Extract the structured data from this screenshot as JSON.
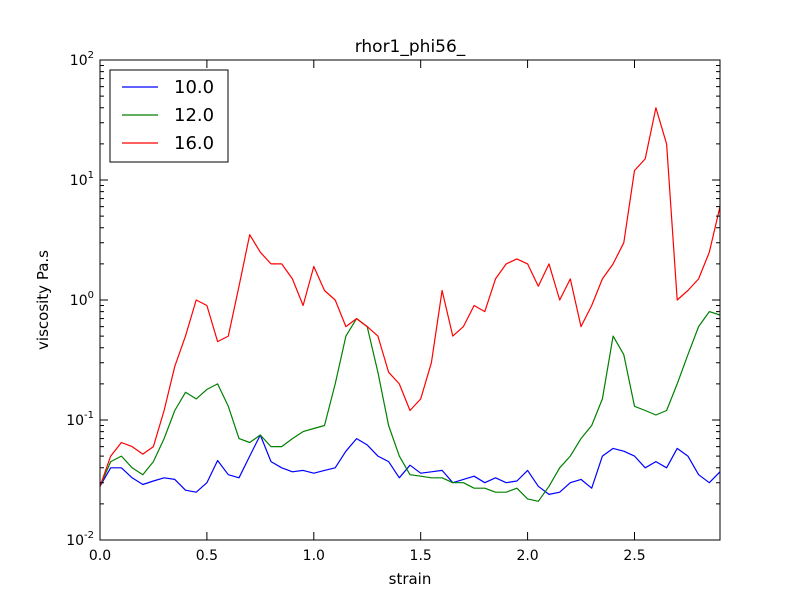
{
  "chart_data": {
    "type": "line",
    "title": "rhor1_phi56_",
    "xlabel": "strain",
    "ylabel": "viscosity Pa.s",
    "xlim": [
      0,
      2.9
    ],
    "ylim": [
      0.01,
      100
    ],
    "yscale": "log",
    "grid": false,
    "legend_position": "top-left",
    "x_ticks": [
      {
        "value": 0.0,
        "label": "0.0"
      },
      {
        "value": 0.5,
        "label": "0.5"
      },
      {
        "value": 1.0,
        "label": "1.0"
      },
      {
        "value": 1.5,
        "label": "1.5"
      },
      {
        "value": 2.0,
        "label": "2.0"
      },
      {
        "value": 2.5,
        "label": "2.5"
      }
    ],
    "y_ticks": [
      {
        "value": 0.01,
        "base": "10",
        "exp": "-2"
      },
      {
        "value": 0.1,
        "base": "10",
        "exp": "-1"
      },
      {
        "value": 1,
        "base": "10",
        "exp": "0"
      },
      {
        "value": 10,
        "base": "10",
        "exp": "1"
      },
      {
        "value": 100,
        "base": "10",
        "exp": "2"
      }
    ],
    "series": [
      {
        "name": "10.0",
        "color": "#0000ff",
        "points": [
          [
            0.0,
            0.028
          ],
          [
            0.05,
            0.04
          ],
          [
            0.1,
            0.04
          ],
          [
            0.15,
            0.033
          ],
          [
            0.2,
            0.029
          ],
          [
            0.25,
            0.031
          ],
          [
            0.3,
            0.033
          ],
          [
            0.35,
            0.032
          ],
          [
            0.4,
            0.026
          ],
          [
            0.45,
            0.025
          ],
          [
            0.5,
            0.03
          ],
          [
            0.55,
            0.046
          ],
          [
            0.6,
            0.035
          ],
          [
            0.65,
            0.033
          ],
          [
            0.7,
            0.05
          ],
          [
            0.75,
            0.075
          ],
          [
            0.8,
            0.045
          ],
          [
            0.85,
            0.04
          ],
          [
            0.9,
            0.037
          ],
          [
            0.95,
            0.038
          ],
          [
            1.0,
            0.036
          ],
          [
            1.05,
            0.038
          ],
          [
            1.1,
            0.04
          ],
          [
            1.15,
            0.055
          ],
          [
            1.2,
            0.07
          ],
          [
            1.25,
            0.062
          ],
          [
            1.3,
            0.05
          ],
          [
            1.35,
            0.045
          ],
          [
            1.4,
            0.033
          ],
          [
            1.45,
            0.042
          ],
          [
            1.5,
            0.036
          ],
          [
            1.55,
            0.037
          ],
          [
            1.6,
            0.038
          ],
          [
            1.65,
            0.03
          ],
          [
            1.7,
            0.032
          ],
          [
            1.75,
            0.034
          ],
          [
            1.8,
            0.03
          ],
          [
            1.85,
            0.033
          ],
          [
            1.9,
            0.03
          ],
          [
            1.95,
            0.031
          ],
          [
            2.0,
            0.038
          ],
          [
            2.05,
            0.028
          ],
          [
            2.1,
            0.024
          ],
          [
            2.15,
            0.025
          ],
          [
            2.2,
            0.03
          ],
          [
            2.25,
            0.032
          ],
          [
            2.3,
            0.027
          ],
          [
            2.35,
            0.05
          ],
          [
            2.4,
            0.058
          ],
          [
            2.45,
            0.055
          ],
          [
            2.5,
            0.05
          ],
          [
            2.55,
            0.04
          ],
          [
            2.6,
            0.045
          ],
          [
            2.65,
            0.04
          ],
          [
            2.7,
            0.058
          ],
          [
            2.75,
            0.05
          ],
          [
            2.8,
            0.035
          ],
          [
            2.85,
            0.03
          ],
          [
            2.9,
            0.037
          ]
        ]
      },
      {
        "name": "12.0",
        "color": "#008000",
        "points": [
          [
            0.0,
            0.028
          ],
          [
            0.05,
            0.045
          ],
          [
            0.1,
            0.05
          ],
          [
            0.15,
            0.04
          ],
          [
            0.2,
            0.035
          ],
          [
            0.25,
            0.045
          ],
          [
            0.3,
            0.07
          ],
          [
            0.35,
            0.12
          ],
          [
            0.4,
            0.17
          ],
          [
            0.45,
            0.15
          ],
          [
            0.5,
            0.18
          ],
          [
            0.55,
            0.2
          ],
          [
            0.6,
            0.13
          ],
          [
            0.65,
            0.07
          ],
          [
            0.7,
            0.065
          ],
          [
            0.75,
            0.075
          ],
          [
            0.8,
            0.06
          ],
          [
            0.85,
            0.06
          ],
          [
            0.9,
            0.07
          ],
          [
            0.95,
            0.08
          ],
          [
            1.0,
            0.085
          ],
          [
            1.05,
            0.09
          ],
          [
            1.1,
            0.2
          ],
          [
            1.15,
            0.5
          ],
          [
            1.2,
            0.7
          ],
          [
            1.25,
            0.6
          ],
          [
            1.3,
            0.25
          ],
          [
            1.35,
            0.09
          ],
          [
            1.4,
            0.05
          ],
          [
            1.45,
            0.035
          ],
          [
            1.5,
            0.034
          ],
          [
            1.55,
            0.033
          ],
          [
            1.6,
            0.033
          ],
          [
            1.65,
            0.03
          ],
          [
            1.7,
            0.03
          ],
          [
            1.75,
            0.027
          ],
          [
            1.8,
            0.027
          ],
          [
            1.85,
            0.025
          ],
          [
            1.9,
            0.025
          ],
          [
            1.95,
            0.027
          ],
          [
            2.0,
            0.022
          ],
          [
            2.05,
            0.021
          ],
          [
            2.1,
            0.028
          ],
          [
            2.15,
            0.04
          ],
          [
            2.2,
            0.05
          ],
          [
            2.25,
            0.07
          ],
          [
            2.3,
            0.09
          ],
          [
            2.35,
            0.15
          ],
          [
            2.4,
            0.5
          ],
          [
            2.45,
            0.35
          ],
          [
            2.5,
            0.13
          ],
          [
            2.55,
            0.12
          ],
          [
            2.6,
            0.11
          ],
          [
            2.65,
            0.12
          ],
          [
            2.7,
            0.2
          ],
          [
            2.75,
            0.35
          ],
          [
            2.8,
            0.6
          ],
          [
            2.85,
            0.8
          ],
          [
            2.9,
            0.75
          ]
        ]
      },
      {
        "name": "16.0",
        "color": "#ff0000",
        "points": [
          [
            0.0,
            0.028
          ],
          [
            0.05,
            0.05
          ],
          [
            0.1,
            0.065
          ],
          [
            0.15,
            0.06
          ],
          [
            0.2,
            0.052
          ],
          [
            0.25,
            0.06
          ],
          [
            0.3,
            0.12
          ],
          [
            0.35,
            0.28
          ],
          [
            0.4,
            0.5
          ],
          [
            0.45,
            1.0
          ],
          [
            0.5,
            0.9
          ],
          [
            0.55,
            0.45
          ],
          [
            0.6,
            0.5
          ],
          [
            0.65,
            1.3
          ],
          [
            0.7,
            3.5
          ],
          [
            0.75,
            2.5
          ],
          [
            0.8,
            2.0
          ],
          [
            0.85,
            2.0
          ],
          [
            0.9,
            1.5
          ],
          [
            0.95,
            0.9
          ],
          [
            1.0,
            1.9
          ],
          [
            1.05,
            1.2
          ],
          [
            1.1,
            1.0
          ],
          [
            1.15,
            0.6
          ],
          [
            1.2,
            0.7
          ],
          [
            1.25,
            0.6
          ],
          [
            1.3,
            0.5
          ],
          [
            1.35,
            0.25
          ],
          [
            1.4,
            0.2
          ],
          [
            1.45,
            0.12
          ],
          [
            1.5,
            0.15
          ],
          [
            1.55,
            0.3
          ],
          [
            1.6,
            1.2
          ],
          [
            1.65,
            0.5
          ],
          [
            1.7,
            0.6
          ],
          [
            1.75,
            0.9
          ],
          [
            1.8,
            0.8
          ],
          [
            1.85,
            1.5
          ],
          [
            1.9,
            2.0
          ],
          [
            1.95,
            2.2
          ],
          [
            2.0,
            2.0
          ],
          [
            2.05,
            1.3
          ],
          [
            2.1,
            2.0
          ],
          [
            2.15,
            1.0
          ],
          [
            2.2,
            1.5
          ],
          [
            2.25,
            0.6
          ],
          [
            2.3,
            0.9
          ],
          [
            2.35,
            1.5
          ],
          [
            2.4,
            2.0
          ],
          [
            2.45,
            3.0
          ],
          [
            2.5,
            12.0
          ],
          [
            2.55,
            15.0
          ],
          [
            2.6,
            40.0
          ],
          [
            2.65,
            20.0
          ],
          [
            2.7,
            1.0
          ],
          [
            2.75,
            1.2
          ],
          [
            2.8,
            1.5
          ],
          [
            2.85,
            2.5
          ],
          [
            2.9,
            6.0
          ]
        ]
      }
    ]
  }
}
